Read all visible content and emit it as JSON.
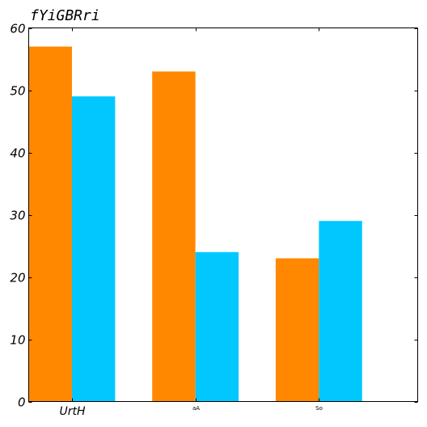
{
  "chart_data": {
    "type": "bar",
    "title": "fYiGBRri",
    "categories": [
      "UrtH",
      "aA",
      "So"
    ],
    "series": [
      {
        "values": [
          57,
          53,
          23
        ],
        "color": "#ff8800"
      },
      {
        "values": [
          49,
          24,
          29
        ],
        "color": "#00c8ff"
      }
    ],
    "ylim": [
      0,
      60
    ],
    "yticks": [
      0,
      10,
      20,
      30,
      40,
      50,
      60
    ],
    "xlabel": "",
    "ylabel": "",
    "grid": false,
    "legend": "none"
  }
}
